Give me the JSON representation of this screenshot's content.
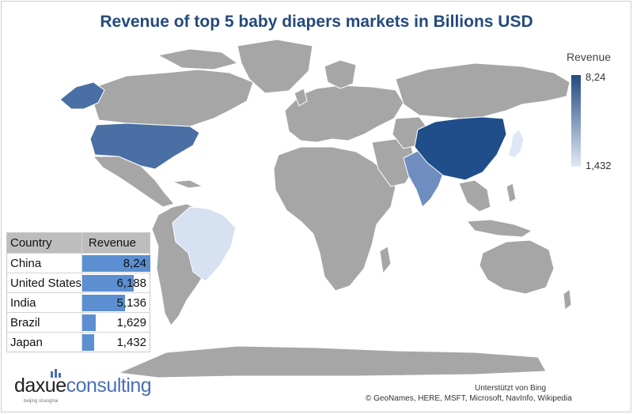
{
  "title": "Revenue of top 5 baby diapers markets in Billions USD",
  "legend": {
    "title": "Revenue",
    "max_label": "8,24",
    "min_label": "1,432",
    "color_max": "#234a82",
    "color_min": "#e2e9f6"
  },
  "colors": {
    "other_land": "#a6a6a6",
    "china": "#1f4e8a",
    "united_states": "#4a6fa5",
    "india": "#6f8dbf",
    "brazil": "#d6e1f2",
    "japan": "#dfe7f5",
    "table_bar": "#5b8fd1"
  },
  "table": {
    "header_country": "Country",
    "header_revenue": "Revenue",
    "rows": [
      {
        "country": "China",
        "revenue": "8,24",
        "value": 8.24
      },
      {
        "country": "United States",
        "revenue": "6,188",
        "value": 6.188
      },
      {
        "country": "India",
        "revenue": "5,136",
        "value": 5.136
      },
      {
        "country": "Brazil",
        "revenue": "1,629",
        "value": 1.629
      },
      {
        "country": "Japan",
        "revenue": "1,432",
        "value": 1.432
      }
    ]
  },
  "logo": {
    "part1": "daxue",
    "part2": "consulting",
    "tagline": "beijing shanghai"
  },
  "credits": {
    "line1": "Unterstützt von Bing",
    "line2": "© GeoNames, HERE, MSFT, Microsoft, NavInfo, Wikipedia"
  }
}
